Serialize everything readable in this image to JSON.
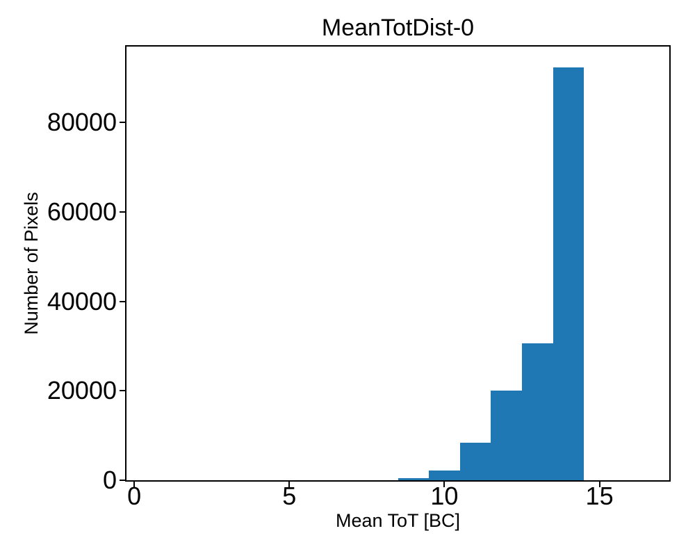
{
  "figure": {
    "background": "#ffffff"
  },
  "chart_data": {
    "type": "bar",
    "title": "MeanTotDist-0",
    "xlabel": "Mean ToT [BC]",
    "ylabel": "Number of Pixels",
    "bar_color": "#1f77b4",
    "axis_color": "#000000",
    "grid": false,
    "legend": null,
    "xlim": [
      -0.25,
      17.25
    ],
    "ylim": [
      0,
      97000
    ],
    "xticks": [
      0,
      5,
      10,
      15
    ],
    "yticks": [
      0,
      20000,
      40000,
      60000,
      80000
    ],
    "bin_width": 1,
    "bins": [
      {
        "x0": 8.5,
        "x1": 9.5,
        "count": 450
      },
      {
        "x0": 9.5,
        "x1": 10.5,
        "count": 2200
      },
      {
        "x0": 10.5,
        "x1": 11.5,
        "count": 8400
      },
      {
        "x0": 11.5,
        "x1": 12.5,
        "count": 20000
      },
      {
        "x0": 12.5,
        "x1": 13.5,
        "count": 30700
      },
      {
        "x0": 13.5,
        "x1": 14.5,
        "count": 92400
      }
    ]
  }
}
